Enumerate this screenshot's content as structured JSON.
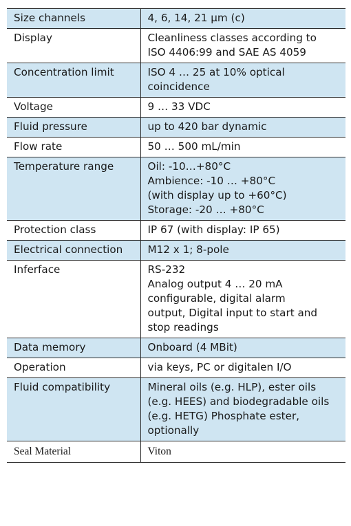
{
  "rows": [
    {
      "label": "Size channels",
      "value": "4, 6, 14, 21 µm (c)",
      "shaded": true
    },
    {
      "label": "Display",
      "value": "Cleanliness classes according to\nISO 4406:99 and SAE AS 4059",
      "shaded": false
    },
    {
      "label": "Concentration limit",
      "value": "ISO 4 … 25 at 10% optical\ncoincidence",
      "shaded": true
    },
    {
      "label": "Voltage",
      "value": "9 … 33 VDC",
      "shaded": false
    },
    {
      "label": "Fluid pressure",
      "value": "up to 420 bar dynamic",
      "shaded": true
    },
    {
      "label": "Flow rate",
      "value": "50 … 500 mL/min",
      "shaded": false
    },
    {
      "label": "Temperature range",
      "value": "Oil: -10…+80°C\nAmbience: -10 … +80°C\n(with display up to +60°C)\nStorage: -20 … +80°C",
      "shaded": true
    },
    {
      "label": "Protection class",
      "value": "IP 67 (with display: IP 65)",
      "shaded": false
    },
    {
      "label": "Electrical connection",
      "value": "M12 x 1; 8-pole",
      "shaded": true
    },
    {
      "label": "Inferface",
      "value": "RS-232\nAnalog output 4 … 20 mA\nconfigurable, digital alarm\noutput, Digital input to start and\nstop readings",
      "shaded": false
    },
    {
      "label": "Data memory",
      "value": "Onboard (4 MBit)",
      "shaded": true
    },
    {
      "label": "Operation",
      "value": "via keys, PC or digitalen I/O",
      "shaded": false
    },
    {
      "label": "Fluid compatibility",
      "value": "Mineral oils (e.g. HLP), ester oils\n(e.g. HEES) and biodegradable oils\n(e.g. HETG) Phosphate ester, optionally",
      "shaded": true
    },
    {
      "label": "Seal Material",
      "value": "Viton",
      "shaded": false,
      "serif": true
    }
  ],
  "colors": {
    "shaded_row": "#cfe5f2",
    "plain_row": "#ffffff",
    "border": "#2b2b2b",
    "text": "#1a1a1a"
  }
}
